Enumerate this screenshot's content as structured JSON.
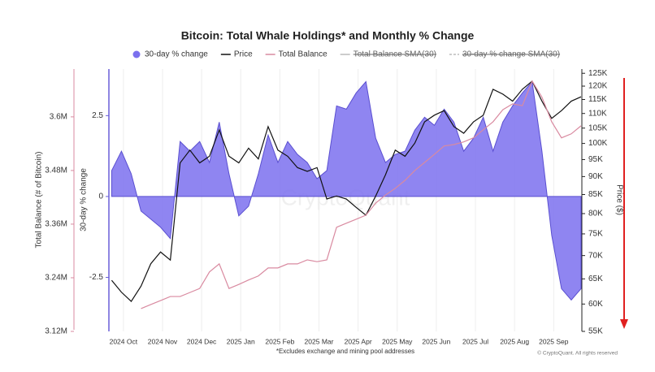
{
  "chart_data": {
    "type": "combo",
    "title": "Bitcoin: Total Whale Holdings* and Monthly % Change",
    "footnote": "*Excludes exchange and mining pool addresses",
    "credit": "© CryptoQuant. All rights reserved",
    "watermark": "CryptoQuant",
    "y_label": "30-day % change",
    "y2_label": "Price ($)",
    "y3_label": "Total Balance (# of Bitcoin)",
    "legend_disabled": [
      "Total Balance SMA(30)",
      "30-day % change SMA(30)"
    ],
    "grid": true,
    "y2_log": true,
    "xlim": [
      -0.35,
      11.7
    ],
    "xticks": [
      {
        "value": 0,
        "label": "2024 Oct"
      },
      {
        "value": 1,
        "label": "2024 Nov"
      },
      {
        "value": 2,
        "label": "2024 Dec"
      },
      {
        "value": 3,
        "label": "2025 Jan"
      },
      {
        "value": 4,
        "label": "2025 Feb"
      },
      {
        "value": 5,
        "label": "2025 Mar"
      },
      {
        "value": 6,
        "label": "2025 Apr"
      },
      {
        "value": 7,
        "label": "2025 May"
      },
      {
        "value": 8,
        "label": "2025 Jun"
      },
      {
        "value": 9,
        "label": "2025 Jul"
      },
      {
        "value": 10,
        "label": "2025 Aug"
      },
      {
        "value": 11,
        "label": "2025 Sep"
      }
    ],
    "ylim": [
      -4.17,
      3.94
    ],
    "yticks": [
      -2.5,
      0,
      2.5
    ],
    "y2lim": [
      55000,
      126700
    ],
    "y2ticks": [
      {
        "value": 55000,
        "label": "55K"
      },
      {
        "value": 60000,
        "label": "60K"
      },
      {
        "value": 65000,
        "label": "65K"
      },
      {
        "value": 70000,
        "label": "70K"
      },
      {
        "value": 75000,
        "label": "75K"
      },
      {
        "value": 80000,
        "label": "80K"
      },
      {
        "value": 85000,
        "label": "85K"
      },
      {
        "value": 90000,
        "label": "90K"
      },
      {
        "value": 95000,
        "label": "95K"
      },
      {
        "value": 100000,
        "label": "100K"
      },
      {
        "value": 105000,
        "label": "105K"
      },
      {
        "value": 110000,
        "label": "110K"
      },
      {
        "value": 115000,
        "label": "115K"
      },
      {
        "value": 120000,
        "label": "120K"
      },
      {
        "value": 125000,
        "label": "125K"
      }
    ],
    "y3lim": [
      3120000,
      3707000
    ],
    "y3ticks": [
      {
        "value": 3120000,
        "label": "3.12M"
      },
      {
        "value": 3240000,
        "label": "3.24M"
      },
      {
        "value": 3360000,
        "label": "3.36M"
      },
      {
        "value": 3480000,
        "label": "3.48M"
      },
      {
        "value": 3600000,
        "label": "3.6M"
      }
    ],
    "x": [
      -0.3,
      -0.05,
      0.2,
      0.45,
      0.7,
      0.95,
      1.2,
      1.45,
      1.7,
      1.95,
      2.2,
      2.45,
      2.7,
      2.95,
      3.2,
      3.45,
      3.7,
      3.95,
      4.2,
      4.45,
      4.7,
      4.95,
      5.2,
      5.45,
      5.7,
      5.95,
      6.2,
      6.45,
      6.7,
      6.95,
      7.2,
      7.45,
      7.7,
      7.95,
      8.2,
      8.45,
      8.7,
      8.95,
      9.2,
      9.45,
      9.7,
      9.95,
      10.2,
      10.45,
      10.7,
      10.95,
      11.2,
      11.45,
      11.7
    ],
    "series": [
      {
        "name": "30-day % change",
        "type": "area",
        "axis": "y",
        "color": "#7b70ee",
        "values": [
          0.8,
          1.4,
          0.7,
          -0.45,
          -0.7,
          -0.95,
          -1.3,
          1.7,
          1.4,
          1.7,
          1.05,
          2.3,
          0.7,
          -0.6,
          -0.3,
          0.7,
          1.9,
          1.05,
          1.7,
          1.3,
          1.05,
          0.55,
          0.8,
          2.8,
          2.7,
          3.2,
          3.55,
          1.8,
          1.05,
          1.3,
          1.4,
          2.05,
          2.45,
          2.2,
          2.7,
          2.3,
          1.4,
          1.8,
          2.45,
          1.4,
          2.3,
          2.8,
          3.2,
          3.55,
          1.4,
          -1.2,
          -2.85,
          -3.2,
          -2.85
        ]
      },
      {
        "name": "Price",
        "type": "line",
        "axis": "y2",
        "color": "#111111",
        "values": [
          64700,
          62300,
          60500,
          63500,
          68200,
          70800,
          69000,
          94000,
          97900,
          94000,
          96000,
          104400,
          96000,
          94000,
          98500,
          95200,
          105500,
          97900,
          96000,
          92600,
          91500,
          92600,
          83800,
          84600,
          83800,
          81600,
          79600,
          84600,
          90500,
          97900,
          96000,
          100100,
          107100,
          109400,
          111000,
          105500,
          103300,
          107100,
          109400,
          118800,
          117000,
          114400,
          118800,
          121900,
          114400,
          108300,
          111000,
          114400,
          116000
        ]
      },
      {
        "name": "Total Balance",
        "type": "line",
        "axis": "y3",
        "color": "#d98aa0",
        "values": [
          null,
          null,
          null,
          3171000,
          3180000,
          3189000,
          3198000,
          3198000,
          3207000,
          3216000,
          3253000,
          3271000,
          3216000,
          3225000,
          3235000,
          3244000,
          3262000,
          3262000,
          3271000,
          3271000,
          3280000,
          3276000,
          3280000,
          3353000,
          3362000,
          3371000,
          3380000,
          3407000,
          3425000,
          3440000,
          3458000,
          3480000,
          3498000,
          3516000,
          3535000,
          3538000,
          3544000,
          3553000,
          3571000,
          3589000,
          3616000,
          3629000,
          3625000,
          3680000,
          3644000,
          3589000,
          3553000,
          3562000,
          3580000
        ]
      }
    ]
  }
}
